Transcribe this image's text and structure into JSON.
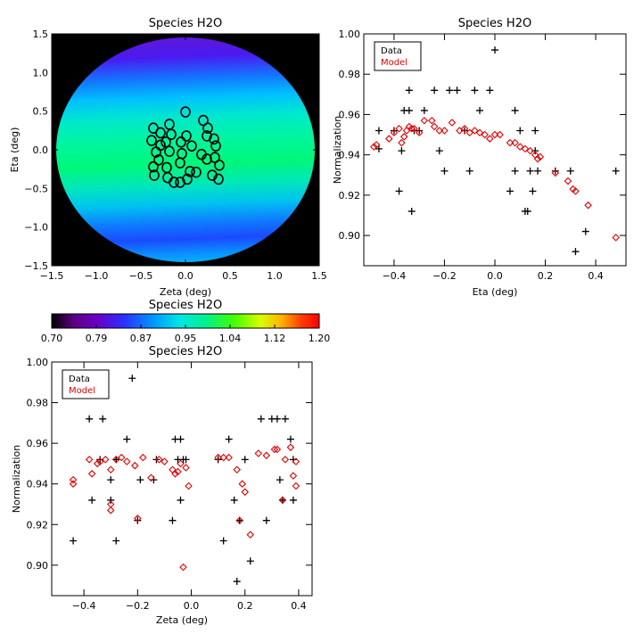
{
  "chart_data": [
    {
      "type": "heatmap",
      "title": "Species H2O",
      "xlabel": "Zeta (deg)",
      "ylabel": "Eta (deg)",
      "xlim": [
        -1.5,
        1.5
      ],
      "ylim": [
        -1.5,
        1.5
      ],
      "xticks": [
        -1.5,
        -1.0,
        -0.5,
        0.0,
        0.5,
        1.0,
        1.5
      ],
      "yticks": [
        -1.5,
        -1.0,
        -0.5,
        0.0,
        0.5,
        1.0,
        1.5
      ],
      "xtick_labels": [
        "−1.5",
        "−1.0",
        "−0.5",
        "0.0",
        "0.5",
        "1.0",
        "1.5"
      ],
      "ytick_labels": [
        "−1.5",
        "−1.0",
        "−0.5",
        "0.0",
        "0.5",
        "1.0",
        "1.5"
      ],
      "field_of_view_radius_deg": 1.45,
      "field_description": "Normalization map striped along Eta; low (violet) at Eta about +1.1, higher (green) near Eta about 0, blue bands repeating toward the bottom",
      "background_color": "#000000",
      "detector_positions": [
        {
          "x": -0.38,
          "y": 0.12
        },
        {
          "x": -0.28,
          "y": 0.22
        },
        {
          "x": -0.18,
          "y": 0.33
        },
        {
          "x": 0.0,
          "y": 0.49
        },
        {
          "x": 0.2,
          "y": 0.38
        },
        {
          "x": 0.25,
          "y": 0.28
        },
        {
          "x": -0.36,
          "y": 0.28
        },
        {
          "x": -0.16,
          "y": 0.2
        },
        {
          "x": 0.01,
          "y": 0.18
        },
        {
          "x": 0.24,
          "y": 0.18
        },
        {
          "x": 0.32,
          "y": 0.14
        },
        {
          "x": -0.22,
          "y": 0.1
        },
        {
          "x": -0.28,
          "y": 0.06
        },
        {
          "x": -0.05,
          "y": 0.1
        },
        {
          "x": 0.07,
          "y": 0.05
        },
        {
          "x": 0.34,
          "y": 0.05
        },
        {
          "x": -0.33,
          "y": -0.03
        },
        {
          "x": -0.18,
          "y": -0.02
        },
        {
          "x": -0.04,
          "y": -0.05
        },
        {
          "x": 0.18,
          "y": -0.06
        },
        {
          "x": -0.3,
          "y": -0.13
        },
        {
          "x": -0.06,
          "y": -0.17
        },
        {
          "x": 0.33,
          "y": -0.1
        },
        {
          "x": 0.24,
          "y": -0.12
        },
        {
          "x": -0.36,
          "y": -0.22
        },
        {
          "x": -0.21,
          "y": -0.23
        },
        {
          "x": 0.38,
          "y": -0.2
        },
        {
          "x": -0.35,
          "y": -0.33
        },
        {
          "x": -0.2,
          "y": -0.36
        },
        {
          "x": 0.05,
          "y": -0.28
        },
        {
          "x": 0.12,
          "y": -0.29
        },
        {
          "x": 0.3,
          "y": -0.33
        },
        {
          "x": -0.06,
          "y": -0.42
        },
        {
          "x": -0.13,
          "y": -0.42
        },
        {
          "x": 0.02,
          "y": -0.38
        },
        {
          "x": 0.37,
          "y": -0.38
        }
      ]
    },
    {
      "type": "bar",
      "title": "Species H2O",
      "colorbar": true,
      "ticks": [
        "0.70",
        "0.79",
        "0.87",
        "0.95",
        "1.04",
        "1.12",
        "1.20"
      ],
      "vmin": 0.7,
      "vmax": 1.2,
      "colormap": [
        "#000000",
        "#6a00a8",
        "#2a18ff",
        "#0098ff",
        "#00e8e8",
        "#00ff80",
        "#80ff00",
        "#ffff00",
        "#ff9000",
        "#ff0000"
      ]
    },
    {
      "type": "scatter",
      "title": "Species H2O",
      "xlabel": "Eta (deg)",
      "ylabel": "Normalization",
      "xlim": [
        -0.52,
        0.52
      ],
      "ylim": [
        0.885,
        1.0
      ],
      "xticks": [
        -0.4,
        -0.2,
        0.0,
        0.2,
        0.4
      ],
      "xtick_labels": [
        "−0.4",
        "−0.2",
        "0.0",
        "0.2",
        "0.4"
      ],
      "yticks": [
        0.9,
        0.92,
        0.94,
        0.96,
        0.98,
        1.0
      ],
      "ytick_labels": [
        "0.90",
        "0.92",
        "0.94",
        "0.96",
        "0.98",
        "1.00"
      ],
      "legend": {
        "position": "top-left",
        "entries": [
          {
            "label": "Data",
            "color": "#000000"
          },
          {
            "label": "Model",
            "color": "#e00000"
          }
        ]
      },
      "series": [
        {
          "name": "Data",
          "marker": "plus",
          "color": "#000000",
          "points": [
            [
              -0.46,
              0.952
            ],
            [
              -0.46,
              0.943
            ],
            [
              -0.4,
              0.952
            ],
            [
              -0.38,
              0.922
            ],
            [
              -0.37,
              0.942
            ],
            [
              -0.36,
              0.962
            ],
            [
              -0.34,
              0.962
            ],
            [
              -0.34,
              0.972
            ],
            [
              -0.33,
              0.912
            ],
            [
              -0.32,
              0.952
            ],
            [
              -0.3,
              0.952
            ],
            [
              -0.28,
              0.962
            ],
            [
              -0.24,
              0.972
            ],
            [
              -0.22,
              0.942
            ],
            [
              -0.2,
              0.932
            ],
            [
              -0.18,
              0.972
            ],
            [
              -0.15,
              0.972
            ],
            [
              -0.12,
              0.952
            ],
            [
              -0.1,
              0.932
            ],
            [
              -0.08,
              0.972
            ],
            [
              -0.06,
              0.962
            ],
            [
              -0.02,
              0.972
            ],
            [
              0.0,
              0.992
            ],
            [
              0.06,
              0.922
            ],
            [
              0.08,
              0.962
            ],
            [
              0.08,
              0.932
            ],
            [
              0.1,
              0.952
            ],
            [
              0.12,
              0.912
            ],
            [
              0.13,
              0.912
            ],
            [
              0.14,
              0.932
            ],
            [
              0.15,
              0.922
            ],
            [
              0.16,
              0.952
            ],
            [
              0.16,
              0.942
            ],
            [
              0.17,
              0.932
            ],
            [
              0.24,
              0.932
            ],
            [
              0.3,
              0.932
            ],
            [
              0.32,
              0.892
            ],
            [
              0.36,
              0.902
            ],
            [
              0.48,
              0.932
            ]
          ]
        },
        {
          "name": "Model",
          "marker": "diamond",
          "color": "#e00000",
          "points": [
            [
              -0.48,
              0.944
            ],
            [
              -0.47,
              0.945
            ],
            [
              -0.42,
              0.948
            ],
            [
              -0.4,
              0.951
            ],
            [
              -0.38,
              0.953
            ],
            [
              -0.37,
              0.946
            ],
            [
              -0.36,
              0.949
            ],
            [
              -0.35,
              0.952
            ],
            [
              -0.34,
              0.954
            ],
            [
              -0.33,
              0.953
            ],
            [
              -0.32,
              0.953
            ],
            [
              -0.3,
              0.951
            ],
            [
              -0.28,
              0.957
            ],
            [
              -0.25,
              0.957
            ],
            [
              -0.24,
              0.954
            ],
            [
              -0.22,
              0.952
            ],
            [
              -0.2,
              0.952
            ],
            [
              -0.17,
              0.956
            ],
            [
              -0.14,
              0.952
            ],
            [
              -0.12,
              0.953
            ],
            [
              -0.1,
              0.951
            ],
            [
              -0.08,
              0.952
            ],
            [
              -0.06,
              0.951
            ],
            [
              -0.04,
              0.95
            ],
            [
              -0.02,
              0.948
            ],
            [
              0.0,
              0.95
            ],
            [
              0.02,
              0.95
            ],
            [
              0.06,
              0.946
            ],
            [
              0.08,
              0.946
            ],
            [
              0.1,
              0.944
            ],
            [
              0.12,
              0.943
            ],
            [
              0.14,
              0.942
            ],
            [
              0.16,
              0.94
            ],
            [
              0.17,
              0.938
            ],
            [
              0.18,
              0.939
            ],
            [
              0.24,
              0.931
            ],
            [
              0.29,
              0.927
            ],
            [
              0.31,
              0.923
            ],
            [
              0.32,
              0.922
            ],
            [
              0.37,
              0.915
            ],
            [
              0.48,
              0.899
            ]
          ]
        }
      ]
    },
    {
      "type": "scatter",
      "title": "Species H2O",
      "xlabel": "Zeta (deg)",
      "ylabel": "Normalization",
      "xlim": [
        -0.52,
        0.45
      ],
      "ylim": [
        0.885,
        1.0
      ],
      "xticks": [
        -0.4,
        -0.2,
        0.0,
        0.2,
        0.4
      ],
      "xtick_labels": [
        "−0.4",
        "−0.2",
        "0.0",
        "0.2",
        "0.4"
      ],
      "yticks": [
        0.9,
        0.92,
        0.94,
        0.96,
        0.98,
        1.0
      ],
      "ytick_labels": [
        "0.90",
        "0.92",
        "0.94",
        "0.96",
        "0.98",
        "1.00"
      ],
      "legend": {
        "position": "top-left",
        "entries": [
          {
            "label": "Data",
            "color": "#000000"
          },
          {
            "label": "Model",
            "color": "#e00000"
          }
        ]
      },
      "series": [
        {
          "name": "Data",
          "marker": "plus",
          "color": "#000000",
          "points": [
            [
              -0.44,
              0.912
            ],
            [
              -0.38,
              0.972
            ],
            [
              -0.37,
              0.932
            ],
            [
              -0.34,
              0.952
            ],
            [
              -0.33,
              0.972
            ],
            [
              -0.3,
              0.942
            ],
            [
              -0.3,
              0.932
            ],
            [
              -0.28,
              0.912
            ],
            [
              -0.28,
              0.952
            ],
            [
              -0.24,
              0.962
            ],
            [
              -0.22,
              0.992
            ],
            [
              -0.2,
              0.922
            ],
            [
              -0.19,
              0.942
            ],
            [
              -0.14,
              0.942
            ],
            [
              -0.13,
              0.952
            ],
            [
              -0.07,
              0.922
            ],
            [
              -0.06,
              0.962
            ],
            [
              -0.05,
              0.952
            ],
            [
              -0.04,
              0.932
            ],
            [
              -0.04,
              0.962
            ],
            [
              -0.03,
              0.952
            ],
            [
              -0.02,
              0.952
            ],
            [
              0.1,
              0.952
            ],
            [
              0.12,
              0.912
            ],
            [
              0.14,
              0.962
            ],
            [
              0.16,
              0.932
            ],
            [
              0.17,
              0.892
            ],
            [
              0.18,
              0.922
            ],
            [
              0.2,
              0.952
            ],
            [
              0.22,
              0.902
            ],
            [
              0.26,
              0.972
            ],
            [
              0.28,
              0.922
            ],
            [
              0.3,
              0.972
            ],
            [
              0.32,
              0.972
            ],
            [
              0.33,
              0.942
            ],
            [
              0.34,
              0.932
            ],
            [
              0.35,
              0.972
            ],
            [
              0.37,
              0.962
            ],
            [
              0.38,
              0.952
            ],
            [
              0.38,
              0.932
            ]
          ]
        },
        {
          "name": "Model",
          "marker": "diamond",
          "color": "#e00000",
          "points": [
            [
              -0.44,
              0.942
            ],
            [
              -0.44,
              0.94
            ],
            [
              -0.38,
              0.952
            ],
            [
              -0.37,
              0.945
            ],
            [
              -0.35,
              0.95
            ],
            [
              -0.34,
              0.951
            ],
            [
              -0.32,
              0.952
            ],
            [
              -0.3,
              0.947
            ],
            [
              -0.3,
              0.93
            ],
            [
              -0.3,
              0.927
            ],
            [
              -0.28,
              0.952
            ],
            [
              -0.26,
              0.953
            ],
            [
              -0.24,
              0.951
            ],
            [
              -0.21,
              0.949
            ],
            [
              -0.2,
              0.923
            ],
            [
              -0.18,
              0.953
            ],
            [
              -0.15,
              0.943
            ],
            [
              -0.12,
              0.952
            ],
            [
              -0.1,
              0.951
            ],
            [
              -0.07,
              0.947
            ],
            [
              -0.06,
              0.945
            ],
            [
              -0.05,
              0.946
            ],
            [
              -0.04,
              0.95
            ],
            [
              -0.03,
              0.899
            ],
            [
              -0.02,
              0.948
            ],
            [
              -0.01,
              0.939
            ],
            [
              0.1,
              0.953
            ],
            [
              0.12,
              0.953
            ],
            [
              0.14,
              0.953
            ],
            [
              0.17,
              0.947
            ],
            [
              0.18,
              0.922
            ],
            [
              0.19,
              0.94
            ],
            [
              0.2,
              0.936
            ],
            [
              0.22,
              0.915
            ],
            [
              0.25,
              0.955
            ],
            [
              0.28,
              0.954
            ],
            [
              0.31,
              0.957
            ],
            [
              0.32,
              0.957
            ],
            [
              0.34,
              0.932
            ],
            [
              0.35,
              0.952
            ],
            [
              0.37,
              0.958
            ],
            [
              0.38,
              0.944
            ],
            [
              0.39,
              0.939
            ],
            [
              0.39,
              0.951
            ]
          ]
        }
      ]
    }
  ]
}
